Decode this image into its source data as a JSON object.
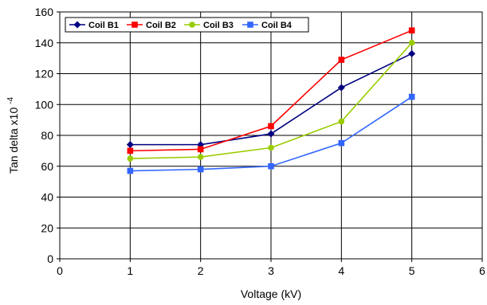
{
  "chart_data": {
    "type": "line",
    "xlabel": "Voltage (kV)",
    "ylabel": "Tan delta x10",
    "ylabel_exponent": "-4",
    "xlim": [
      0,
      6
    ],
    "ylim": [
      0,
      160
    ],
    "x_ticks": [
      "0",
      "1",
      "2",
      "3",
      "4",
      "5",
      "6"
    ],
    "y_ticks": [
      "0",
      "20",
      "40",
      "60",
      "80",
      "100",
      "120",
      "140",
      "160"
    ],
    "grid": true,
    "legend_position": "top-left",
    "x": [
      1,
      2,
      3,
      4,
      5
    ],
    "series": [
      {
        "name": "Coil  B1",
        "color": "#000080",
        "marker": "diamond",
        "values": [
          74,
          74,
          81,
          111,
          133
        ]
      },
      {
        "name": "Coil  B2",
        "color": "#ff0000",
        "marker": "square",
        "values": [
          70,
          71,
          86,
          129,
          148
        ]
      },
      {
        "name": "Coil  B3",
        "color": "#99cc00",
        "marker": "circle",
        "values": [
          65,
          66,
          72,
          89,
          140
        ]
      },
      {
        "name": "Coil  B4",
        "color": "#3366ff",
        "marker": "square",
        "values": [
          57,
          58,
          60,
          75,
          105
        ]
      }
    ]
  }
}
